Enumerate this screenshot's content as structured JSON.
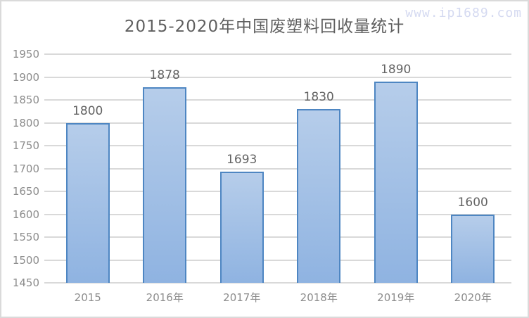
{
  "watermark": {
    "text": "www.ip1689.com"
  },
  "chart_data": {
    "type": "bar",
    "title": "2015-2020年中国废塑料回收量统计",
    "categories": [
      "2015",
      "2016年",
      "2017年",
      "2018年",
      "2019年",
      "2020年"
    ],
    "values": [
      1800,
      1878,
      1693,
      1830,
      1890,
      1600
    ],
    "value_labels": [
      "1800",
      "1878",
      "1693",
      "1830",
      "1890",
      "1600"
    ],
    "xlabel": "",
    "ylabel": "",
    "ylim": [
      1450,
      1950
    ],
    "ytick_step": 50,
    "yticks": [
      1450,
      1500,
      1550,
      1600,
      1650,
      1700,
      1750,
      1800,
      1850,
      1900,
      1950
    ],
    "grid": true,
    "legend": "none",
    "colors": {
      "title_text": "#5f5f5f",
      "axis_text": "#8c8c8c",
      "value_text": "#636363",
      "gridline": "#d9d9d9",
      "bar_border": "#4e86c2",
      "bar_fill_top": "#b6cdea",
      "bar_fill_bottom": "#8fb3e1",
      "watermark_text": "#d5daf1",
      "frame_border": "#dadada"
    }
  }
}
